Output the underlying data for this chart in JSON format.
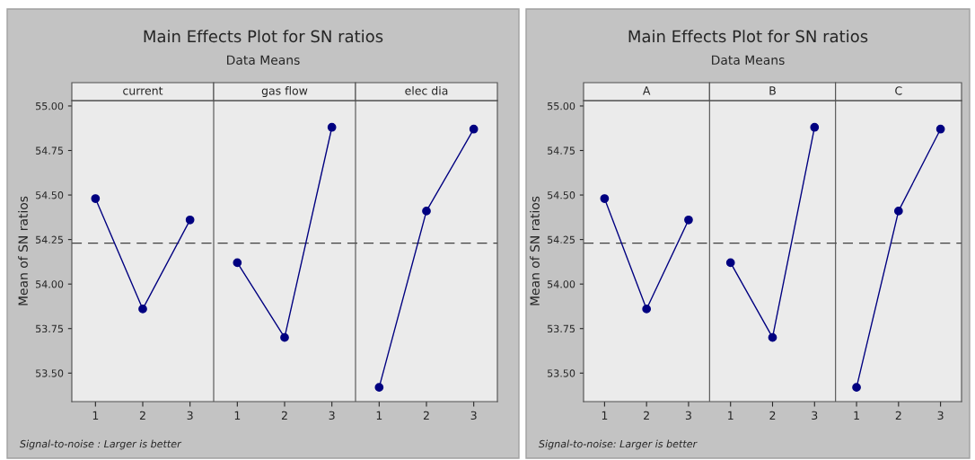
{
  "chart_data": [
    {
      "type": "line",
      "title": "Main Effects Plot for SN ratios",
      "subtitle": "Data Means",
      "ylabel": "Mean of SN ratios",
      "annotations": [
        "Signal-to-noise : Larger is better",
        "current",
        "gas flow",
        "elec dia"
      ],
      "categories": [
        "1",
        "2",
        "3",
        "1",
        "2",
        "3",
        "1",
        "2",
        "3"
      ],
      "series": [
        {
          "color": "#000080",
          "values": [
            54.48,
            53.86,
            54.36,
            null,
            null,
            null,
            null,
            null,
            null
          ]
        },
        {
          "color": "#000080",
          "values": [
            null,
            null,
            null,
            54.12,
            53.7,
            54.88,
            null,
            null,
            null
          ]
        },
        {
          "color": "#000080",
          "values": [
            null,
            null,
            null,
            null,
            null,
            null,
            53.42,
            54.41,
            54.87
          ]
        }
      ],
      "marker": "circle",
      "ylim": [
        53.34,
        55.03
      ],
      "yticks": [
        {
          "value": 53.5,
          "label": "53.50"
        },
        {
          "value": 53.75,
          "label": "53.75"
        },
        {
          "value": 54.0,
          "label": "54.00"
        },
        {
          "value": 54.25,
          "label": "54.25"
        },
        {
          "value": 54.5,
          "label": "54.50"
        },
        {
          "value": 54.75,
          "label": "54.75"
        },
        {
          "value": 55.0,
          "label": "55.00"
        }
      ],
      "ref_lines": [
        {
          "axis": "y",
          "value": 54.23,
          "line_style": "dashed"
        }
      ]
    },
    {
      "type": "line",
      "title": "Main Effects Plot for SN ratios",
      "subtitle": "Data Means",
      "ylabel": "Mean of SN ratios",
      "annotations": [
        "Signal-to-noise: Larger is better",
        "A",
        "B",
        "C"
      ],
      "categories": [
        "1",
        "2",
        "3",
        "1",
        "2",
        "3",
        "1",
        "2",
        "3"
      ],
      "series": [
        {
          "color": "#000080",
          "values": [
            54.48,
            53.86,
            54.36,
            null,
            null,
            null,
            null,
            null,
            null
          ]
        },
        {
          "color": "#000080",
          "values": [
            null,
            null,
            null,
            54.12,
            53.7,
            54.88,
            null,
            null,
            null
          ]
        },
        {
          "color": "#000080",
          "values": [
            null,
            null,
            null,
            null,
            null,
            null,
            53.42,
            54.41,
            54.87
          ]
        }
      ],
      "marker": "circle",
      "ylim": [
        53.34,
        55.03
      ],
      "yticks": [
        {
          "value": 53.5,
          "label": "53.50"
        },
        {
          "value": 53.75,
          "label": "53.75"
        },
        {
          "value": 54.0,
          "label": "54.00"
        },
        {
          "value": 54.25,
          "label": "54.25"
        },
        {
          "value": 54.5,
          "label": "54.50"
        },
        {
          "value": 54.75,
          "label": "54.75"
        },
        {
          "value": 55.0,
          "label": "55.00"
        }
      ],
      "ref_lines": [
        {
          "axis": "y",
          "value": 54.23,
          "line_style": "dashed"
        }
      ]
    }
  ]
}
